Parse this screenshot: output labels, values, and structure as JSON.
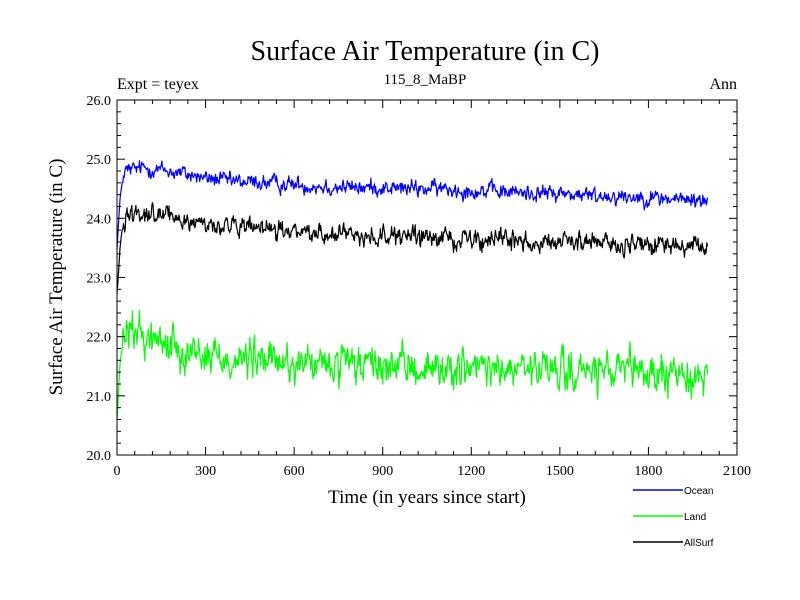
{
  "chart_data": {
    "type": "line",
    "title": "Surface Air Temperature (in C)",
    "subtitle": "115_8_MaBP",
    "annotation_left": "Expt = teyex",
    "annotation_right": "Ann",
    "xlabel": "Time (in years since start)",
    "ylabel": "Surface Air Temperature (in C)",
    "xlim": [
      0,
      2100
    ],
    "ylim": [
      20.0,
      26.0
    ],
    "xticks": [
      0,
      300,
      600,
      900,
      1200,
      1500,
      1800,
      2100
    ],
    "xtick_labels": [
      "0",
      "300",
      "600",
      "900",
      "1200",
      "1500",
      "1800",
      "2100"
    ],
    "yticks": [
      20.0,
      21.0,
      22.0,
      23.0,
      24.0,
      25.0,
      26.0
    ],
    "ytick_labels": [
      "20.0",
      "21.0",
      "22.0",
      "23.0",
      "24.0",
      "25.0",
      "26.0"
    ],
    "legend_position": "bottom-right, below plot",
    "series": [
      {
        "name": "Ocean",
        "color": "#0000ff",
        "x": [
          0,
          10,
          20,
          30,
          50,
          80,
          100,
          150,
          200,
          300,
          400,
          500,
          600,
          700,
          800,
          900,
          1000,
          1100,
          1200,
          1300,
          1400,
          1500,
          1600,
          1700,
          1800,
          1900,
          2000
        ],
        "values": [
          23.5,
          24.3,
          24.7,
          24.8,
          24.82,
          24.85,
          24.85,
          24.82,
          24.78,
          24.68,
          24.62,
          24.6,
          24.57,
          24.54,
          24.52,
          24.52,
          24.5,
          24.5,
          24.47,
          24.45,
          24.43,
          24.42,
          24.38,
          24.38,
          24.35,
          24.32,
          24.3
        ],
        "noise": 0.06
      },
      {
        "name": "Land",
        "color": "#00ff00",
        "x": [
          0,
          10,
          20,
          30,
          50,
          80,
          100,
          150,
          200,
          300,
          400,
          500,
          600,
          700,
          800,
          900,
          1000,
          1100,
          1200,
          1300,
          1400,
          1500,
          1600,
          1700,
          1800,
          1900,
          2000
        ],
        "values": [
          20.6,
          21.5,
          21.9,
          22.05,
          22.1,
          22.05,
          22.0,
          21.9,
          21.85,
          21.7,
          21.62,
          21.6,
          21.55,
          21.5,
          21.5,
          21.5,
          21.48,
          21.45,
          21.45,
          21.43,
          21.42,
          21.42,
          21.4,
          21.38,
          21.38,
          21.35,
          21.35
        ],
        "noise": 0.14
      },
      {
        "name": "AllSurf",
        "color": "#000000",
        "x": [
          0,
          10,
          20,
          30,
          50,
          80,
          100,
          150,
          200,
          300,
          400,
          500,
          600,
          700,
          800,
          900,
          1000,
          1100,
          1200,
          1300,
          1400,
          1500,
          1600,
          1700,
          1800,
          1900,
          2000
        ],
        "values": [
          22.7,
          23.5,
          23.9,
          24.05,
          24.1,
          24.12,
          24.1,
          24.05,
          24.0,
          23.9,
          23.85,
          23.8,
          23.78,
          23.75,
          23.73,
          23.7,
          23.68,
          23.67,
          23.65,
          23.63,
          23.62,
          23.6,
          23.58,
          23.57,
          23.55,
          23.52,
          23.5
        ],
        "noise": 0.07
      }
    ]
  }
}
